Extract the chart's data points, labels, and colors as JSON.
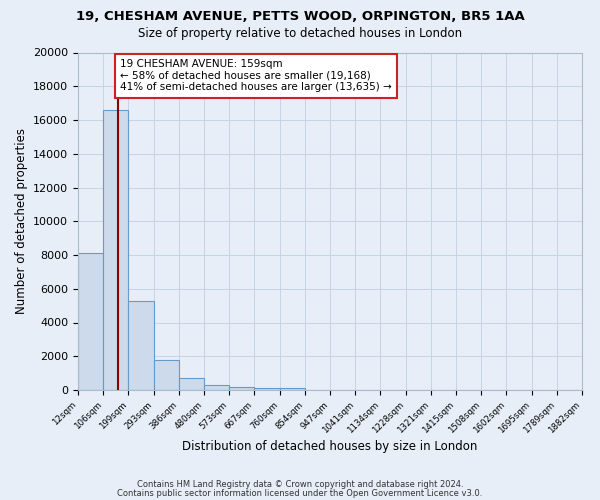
{
  "title1": "19, CHESHAM AVENUE, PETTS WOOD, ORPINGTON, BR5 1AA",
  "title2": "Size of property relative to detached houses in London",
  "xlabel": "Distribution of detached houses by size in London",
  "ylabel": "Number of detached properties",
  "bar_values": [
    8100,
    16600,
    5300,
    1800,
    700,
    300,
    200,
    100,
    100,
    0,
    0,
    0,
    0,
    0,
    0,
    0,
    0,
    0,
    0,
    0
  ],
  "bar_labels": [
    "12sqm",
    "106sqm",
    "199sqm",
    "293sqm",
    "386sqm",
    "480sqm",
    "573sqm",
    "667sqm",
    "760sqm",
    "854sqm",
    "947sqm",
    "1041sqm",
    "1134sqm",
    "1228sqm",
    "1321sqm",
    "1415sqm",
    "1508sqm",
    "1602sqm",
    "1695sqm",
    "1789sqm",
    "1882sqm"
  ],
  "bar_color": "#ccdaeb",
  "bar_edge_color": "#6699cc",
  "grid_color": "#c8d4e4",
  "background_color": "#e8eef8",
  "vline_color": "#8b0000",
  "annotation_text": "19 CHESHAM AVENUE: 159sqm\n← 58% of detached houses are smaller (19,168)\n41% of semi-detached houses are larger (13,635) →",
  "annotation_box_color": "#ffffff",
  "annotation_box_edge": "#cc2222",
  "ylim": [
    0,
    20000
  ],
  "yticks": [
    0,
    2000,
    4000,
    6000,
    8000,
    10000,
    12000,
    14000,
    16000,
    18000,
    20000
  ],
  "footer1": "Contains HM Land Registry data © Crown copyright and database right 2024.",
  "footer2": "Contains public sector information licensed under the Open Government Licence v3.0."
}
